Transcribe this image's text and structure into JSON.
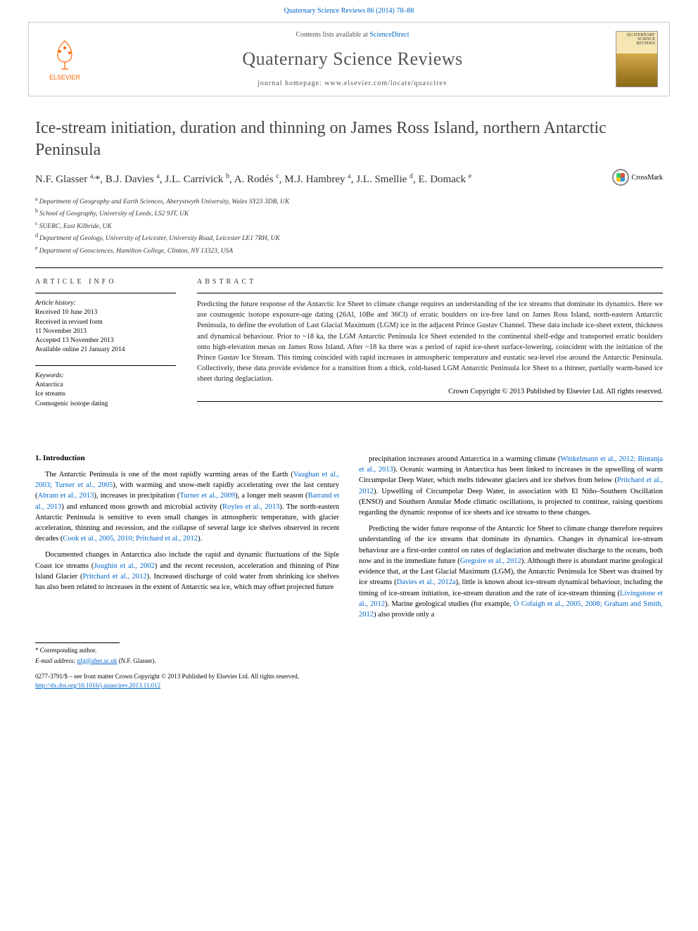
{
  "citation": "Quaternary Science Reviews 86 (2014) 78–88",
  "header": {
    "contents_prefix": "Contents lists available at ",
    "contents_link": "ScienceDirect",
    "journal": "Quaternary Science Reviews",
    "homepage_prefix": "journal homepage: ",
    "homepage": "www.elsevier.com/locate/quascirev",
    "elsevier": "ELSEVIER",
    "cover_text": "QUATERNARY SCIENCE REVIEWS",
    "crossmark": "CrossMark"
  },
  "article": {
    "title": "Ice-stream initiation, duration and thinning on James Ross Island, northern Antarctic Peninsula",
    "authors_html": "N.F. Glasser <sup>a,</sup>*, B.J. Davies <sup>a</sup>, J.L. Carrivick <sup>b</sup>, A. Rodés <sup>c</sup>, M.J. Hambrey <sup>a</sup>, J.L. Smellie <sup>d</sup>, E. Domack <sup>e</sup>",
    "affiliations": [
      {
        "sup": "a",
        "text": "Department of Geography and Earth Sciences, Aberystwyth University, Wales SY23 3DB, UK"
      },
      {
        "sup": "b",
        "text": "School of Geography, University of Leeds, LS2 9JT, UK"
      },
      {
        "sup": "c",
        "text": "SUERC, East Kilbride, UK"
      },
      {
        "sup": "d",
        "text": "Department of Geology, University of Leicester, University Road, Leicester LE1 7RH, UK"
      },
      {
        "sup": "e",
        "text": "Department of Geosciences, Hamilton College, Clinton, NY 13323, USA"
      }
    ]
  },
  "info": {
    "heading": "ARTICLE INFO",
    "history_title": "Article history:",
    "history": [
      "Received 10 June 2013",
      "Received in revised form",
      "11 November 2013",
      "Accepted 13 November 2013",
      "Available online 21 January 2014"
    ],
    "keywords_title": "Keywords:",
    "keywords": [
      "Antarctica",
      "Ice streams",
      "Cosmogenic isotope dating"
    ]
  },
  "abstract": {
    "heading": "ABSTRACT",
    "text": "Predicting the future response of the Antarctic Ice Sheet to climate change requires an understanding of the ice streams that dominate its dynamics. Here we use cosmogenic isotope exposure-age dating (26Al, 10Be and 36Cl) of erratic boulders on ice-free land on James Ross Island, north-eastern Antarctic Peninsula, to define the evolution of Last Glacial Maximum (LGM) ice in the adjacent Prince Gustav Channel. These data include ice-sheet extent, thickness and dynamical behaviour. Prior to ~18 ka, the LGM Antarctic Peninsula Ice Sheet extended to the continental shelf-edge and transported erratic boulders onto high-elevation mesas on James Ross Island. After ~18 ka there was a period of rapid ice-sheet surface-lowering, coincident with the initiation of the Prince Gustav Ice Stream. This timing coincided with rapid increases in atmospheric temperature and eustatic sea-level rise around the Antarctic Peninsula. Collectively, these data provide evidence for a transition from a thick, cold-based LGM Antarctic Peninsula Ice Sheet to a thinner, partially warm-based ice sheet during deglaciation.",
    "copyright": "Crown Copyright © 2013 Published by Elsevier Ltd. All rights reserved."
  },
  "body": {
    "section_heading": "1. Introduction",
    "col1": [
      "The Antarctic Peninsula is one of the most rapidly warming areas of the Earth (<span class=\"ref-link\">Vaughan et al., 2003; Turner et al., 2005</span>), with warming and snow-melt rapidly accelerating over the last century (<span class=\"ref-link\">Abram et al., 2013</span>), increases in precipitation (<span class=\"ref-link\">Turner et al., 2009</span>), a longer melt season (<span class=\"ref-link\">Barrand et al., 2013</span>) and enhanced moss growth and microbial activity (<span class=\"ref-link\">Royles et al., 2013</span>). The north-eastern Antarctic Peninsula is sensitive to even small changes in atmospheric temperature, with glacier acceleration, thinning and recession, and the collapse of several large ice shelves observed in recent decades (<span class=\"ref-link\">Cook et al., 2005, 2010; Pritchard et al., 2012</span>).",
      "Documented changes in Antarctica also include the rapid and dynamic fluctuations of the Siple Coast ice streams (<span class=\"ref-link\">Joughin et al., 2002</span>) and the recent recession, acceleration and thinning of Pine Island Glacier (<span class=\"ref-link\">Pritchard et al., 2012</span>). Increased discharge of cold water from shrinking ice shelves has also been related to increases in the extent of Antarctic sea ice, which may offset projected future"
    ],
    "col2": [
      "precipitation increases around Antarctica in a warming climate (<span class=\"ref-link\">Winkelmann et al., 2012; Bintanja et al., 2013</span>). Oceanic warming in Antarctica has been linked to increases in the upwelling of warm Circumpolar Deep Water, which melts tidewater glaciers and ice shelves from below (<span class=\"ref-link\">Pritchard et al., 2012</span>). Upwelling of Circumpolar Deep Water, in association with El Niño–Southern Oscillation (ENSO) and Southern Annular Mode climatic oscillations, is projected to continue, raising questions regarding the dynamic response of ice sheets and ice streams to these changes.",
      "Predicting the wider future response of the Antarctic Ice Sheet to climate change therefore requires understanding of the ice streams that dominate its dynamics. Changes in dynamical ice-stream behaviour are a first-order control on rates of deglaciation and meltwater discharge to the oceans, both now and in the immediate future (<span class=\"ref-link\">Gregoire et al., 2012</span>). Although there is abundant marine geological evidence that, at the Last Glacial Maximum (LGM), the Antarctic Peninsula Ice Sheet was drained by ice streams (<span class=\"ref-link\">Davies et al., 2012a</span>), little is known about ice-stream dynamical behaviour, including the timing of ice-stream initiation, ice-stream duration and the rate of ice-stream thinning (<span class=\"ref-link\">Livingstone et al., 2012</span>). Marine geological studies (for example, <span class=\"ref-link\">Ó Cofaigh et al., 2005, 2008; Graham and Smith, 2012</span>) also provide only a"
    ]
  },
  "footer": {
    "corresponding": "* Corresponding author.",
    "email_label": "E-mail address: ",
    "email": "nfg@aber.ac.uk",
    "email_suffix": " (N.F. Glasser).",
    "issn_line": "0277-3791/$ – see front matter Crown Copyright © 2013 Published by Elsevier Ltd. All rights reserved.",
    "doi": "http://dx.doi.org/10.1016/j.quascirev.2013.11.012"
  },
  "colors": {
    "link": "#0066cc",
    "elsevier_orange": "#ff6600",
    "text": "#222222"
  }
}
